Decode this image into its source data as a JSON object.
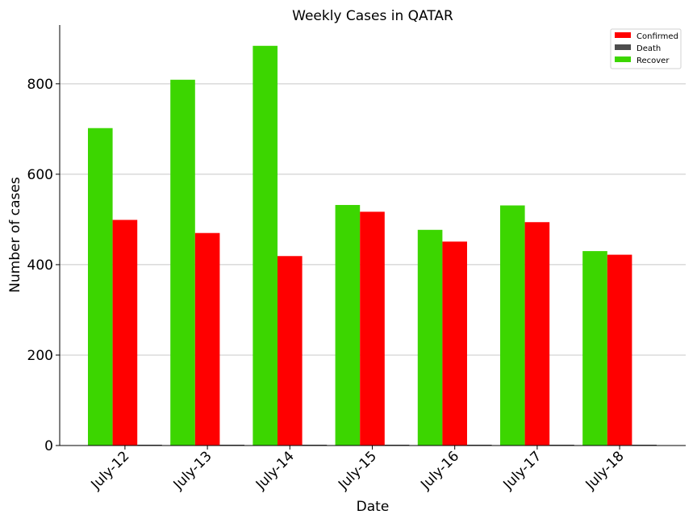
{
  "chart_data": {
    "type": "bar",
    "title": "Weekly Cases in QATAR",
    "xlabel": "Date",
    "ylabel": "Number of cases",
    "categories": [
      "July-12",
      "July-13",
      "July-14",
      "July-15",
      "July-16",
      "July-17",
      "July-18"
    ],
    "series": [
      {
        "name": "Recover",
        "color": "#3cd600",
        "values": [
          702,
          809,
          884,
          532,
          477,
          531,
          430
        ]
      },
      {
        "name": "Confirmed",
        "color": "#ff0000",
        "values": [
          499,
          470,
          419,
          517,
          451,
          494,
          422
        ]
      },
      {
        "name": "Death",
        "color": "#4d4d4d",
        "values": [
          0,
          1,
          1,
          1,
          1,
          1,
          1
        ]
      }
    ],
    "legend_order": [
      "Confirmed",
      "Death",
      "Recover"
    ],
    "ylim": [
      0,
      930
    ],
    "yticks": [
      0,
      200,
      400,
      600,
      800
    ],
    "grid": "horizontal",
    "legend_position": "top-right"
  }
}
